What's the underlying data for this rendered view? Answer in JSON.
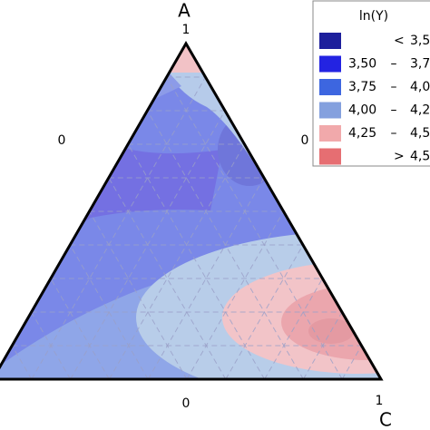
{
  "chart_data": {
    "type": "ternary-contour",
    "vertex_labels": {
      "top": "A",
      "right": "C"
    },
    "axis_labels": {
      "top": "1",
      "left_side": "0",
      "right_side": "0",
      "bottom": "0",
      "bottom_right": "1"
    },
    "legend": {
      "title": "ln(Y)",
      "items": [
        {
          "parts": [
            "<",
            "3,5"
          ],
          "color": "#1d1f9c"
        },
        {
          "parts": [
            "3,50",
            "–",
            "3,7"
          ],
          "color": "#2323e2"
        },
        {
          "parts": [
            "3,75",
            "–",
            "4,0"
          ],
          "color": "#3d66e0"
        },
        {
          "parts": [
            "4,00",
            "–",
            "4,2"
          ],
          "color": "#84a0de"
        },
        {
          "parts": [
            "4,25",
            "–",
            "4,5"
          ],
          "color": "#f1a9ab"
        },
        {
          "parts": [
            ">",
            "4,5"
          ],
          "color": "#e66e72"
        }
      ]
    },
    "grid": true
  }
}
